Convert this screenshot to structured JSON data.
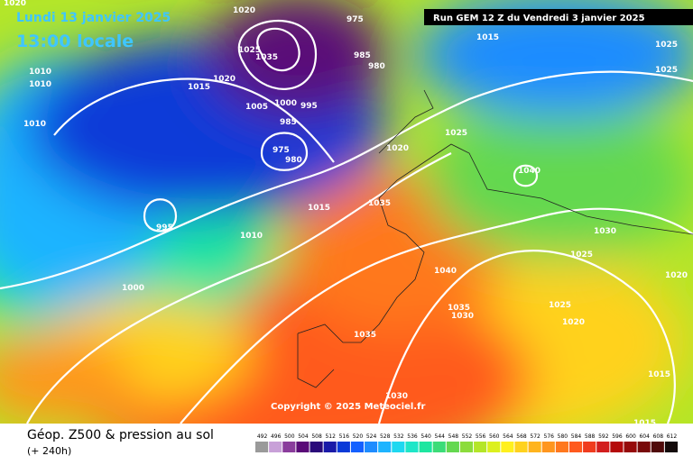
{
  "header": {
    "date": "Lundi 13 janvier 2025",
    "time": "13:00 locale",
    "run": "Run GEM 12 Z du Vendredi 3 janvier 2025"
  },
  "map": {
    "copyright": "Copyright © 2025 Meteociel.fr",
    "isobar_labels": [
      1020,
      1020,
      975,
      1015,
      1025,
      1025,
      1025,
      1035,
      985,
      980,
      1010,
      1010,
      1015,
      1020,
      1005,
      1000,
      995,
      985,
      1010,
      1020,
      1025,
      1040,
      975,
      980,
      1035,
      1015,
      995,
      1010,
      1030,
      1025,
      1000,
      1040,
      1020,
      1025,
      1035,
      1030,
      1020,
      1035,
      1015,
      1030,
      1015
    ]
  },
  "footer": {
    "title": "Géop. Z500 & pression au sol",
    "lead": "(+ 240h)"
  },
  "legend": {
    "values": [
      492,
      496,
      500,
      504,
      508,
      512,
      516,
      520,
      524,
      528,
      532,
      536,
      540,
      544,
      548,
      552,
      556,
      560,
      564,
      568,
      572,
      576,
      580,
      584,
      588,
      592,
      596,
      600,
      604,
      608,
      612
    ],
    "colors": [
      "#9a9a9a",
      "#c8a0d8",
      "#8a3c9c",
      "#5a0a78",
      "#2a0a7a",
      "#1a1aa8",
      "#0a3ad8",
      "#1460ff",
      "#1e8cff",
      "#1eb4ff",
      "#1ed8f0",
      "#1ee6c8",
      "#1ee6a0",
      "#3cdc78",
      "#64d850",
      "#8cdc3c",
      "#b4e628",
      "#dcf01e",
      "#fff01e",
      "#ffd21e",
      "#ffb41e",
      "#ff961e",
      "#ff781e",
      "#ff5a1e",
      "#f03c1e",
      "#d21e1e",
      "#b40a0a",
      "#960a0a",
      "#780a0a",
      "#500a0a",
      "#140a0a"
    ]
  }
}
